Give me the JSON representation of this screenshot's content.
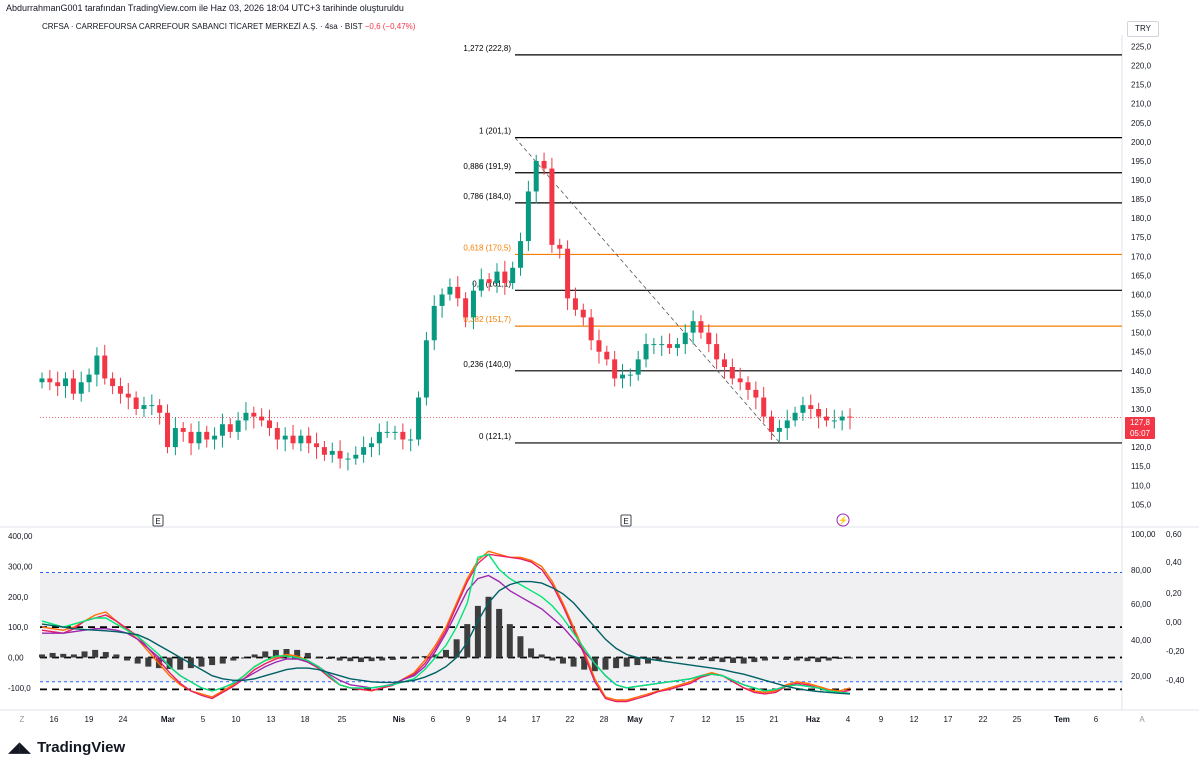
{
  "header": {
    "credit": "AbdurrahmanG001 tarafından TradingView.com ile Haz 03, 2026 18:04 UTC+3 tarihinde oluşturuldu"
  },
  "symbol": {
    "title": "CRFSA · CARREFOURSA CARREFOUR SABANCI TİCARET MERKEZİ A.Ş. · 4sa · BIST",
    "change": "−0,6 (−0,47%)",
    "currency": "TRY",
    "last_price": "127,8",
    "countdown": "05:07",
    "last_price_value": 127.8
  },
  "colors": {
    "up": "#089981",
    "down": "#f23645",
    "fib_black": "#000000",
    "fib_orange": "#f57c00",
    "osc_bar": "#3d3d3d",
    "line_orange": "#ff6d00",
    "line_magenta": "#9c27b0",
    "line_red": "#e91e63",
    "line_green": "#00e676",
    "line_teal": "#006064",
    "dash_blue": "#2962ff"
  },
  "chart_data": [
    {
      "type": "candlestick",
      "title": "CRFSA 4sa",
      "ylim": [
        103,
        228
      ],
      "y_ticks": [
        "225,0",
        "220,0",
        "215,0",
        "210,0",
        "205,0",
        "200,0",
        "195,0",
        "190,0",
        "185,0",
        "180,0",
        "175,0",
        "170,0",
        "165,0",
        "160,0",
        "155,0",
        "150,0",
        "145,0",
        "140,0",
        "135,0",
        "130,0",
        "125,0",
        "120,0",
        "115,0",
        "110,0",
        "105,0"
      ],
      "y_tick_values": [
        225,
        220,
        215,
        210,
        205,
        200,
        195,
        190,
        185,
        180,
        175,
        170,
        165,
        160,
        155,
        150,
        145,
        140,
        135,
        130,
        125,
        120,
        115,
        110,
        105
      ],
      "x_ticks": [
        "Z",
        "16",
        "19",
        "24",
        "Mar",
        "5",
        "10",
        "13",
        "18",
        "25",
        "Nis",
        "6",
        "9",
        "14",
        "17",
        "22",
        "28",
        "May",
        "7",
        "12",
        "15",
        "21",
        "Haz",
        "4",
        "9",
        "12",
        "17",
        "22",
        "25",
        "Tem",
        "6",
        "A"
      ],
      "fib_levels": [
        {
          "label": "1,272 (222,8)",
          "value": 222.8,
          "color": "black"
        },
        {
          "label": "1 (201,1)",
          "value": 201.1,
          "color": "black"
        },
        {
          "label": "0,886 (191,9)",
          "value": 191.9,
          "color": "black"
        },
        {
          "label": "0,786 (184,0)",
          "value": 184.0,
          "color": "black"
        },
        {
          "label": "0,618 (170,5)",
          "value": 170.5,
          "color": "orange"
        },
        {
          "label": "0,5 (161,1)",
          "value": 161.1,
          "color": "black"
        },
        {
          "label": "0,382 (151,7)",
          "value": 151.7,
          "color": "orange"
        },
        {
          "label": "0,236 (140,0)",
          "value": 140.0,
          "color": "black"
        },
        {
          "label": "0 (121,1)",
          "value": 121.1,
          "color": "black"
        }
      ],
      "close_path": [
        138,
        137,
        136,
        138,
        134,
        137,
        139,
        144,
        138,
        136,
        134,
        133,
        130,
        131,
        131,
        129,
        120,
        125,
        124,
        121,
        124,
        122,
        123,
        126,
        124,
        127,
        129,
        128,
        127,
        125,
        122,
        123,
        121,
        123,
        121,
        120,
        118,
        119,
        117,
        117,
        118,
        120,
        121,
        124,
        124,
        124,
        122,
        122,
        133,
        148,
        157,
        160,
        162,
        159,
        154,
        161,
        164,
        163,
        166,
        163,
        167,
        174,
        187,
        195,
        193,
        173,
        172,
        159,
        156,
        154,
        148,
        145,
        143,
        138,
        139,
        139,
        143,
        147,
        147,
        147,
        146,
        147,
        150,
        153,
        150,
        147,
        143,
        141,
        138,
        137,
        135,
        133,
        128,
        124,
        125,
        127,
        129,
        131,
        130,
        128,
        127,
        127,
        128,
        127.8
      ]
    },
    {
      "type": "line",
      "title": "Oscillator",
      "ylim": [
        -140,
        420
      ],
      "y_ticks_left": [
        "400,00",
        "300,00",
        "200,0",
        "100,0",
        "0,00",
        "-100,0"
      ],
      "y_tick_values_left": [
        400,
        300,
        200,
        100,
        0,
        -100
      ],
      "y_ticks_right": [
        "100,00",
        "80,00",
        "60,00",
        "40,00",
        "20,00"
      ],
      "y_ticks_right_values": [
        100,
        80,
        60,
        40,
        20
      ],
      "y_ticks_right2": [
        "0,60",
        "0,40",
        "0,20",
        "0,00",
        "-0,20",
        "-0,40"
      ],
      "dashed_levels": [
        {
          "value": 280,
          "color": "blue"
        },
        {
          "value": 100,
          "color": "black"
        },
        {
          "value": 0,
          "color": "black"
        },
        {
          "value": -80,
          "color": "blue"
        },
        {
          "value": -105,
          "color": "black"
        }
      ],
      "histogram": [
        10,
        15,
        12,
        10,
        20,
        25,
        18,
        10,
        -10,
        -20,
        -30,
        -35,
        -38,
        -40,
        -35,
        -30,
        -25,
        -20,
        -10,
        0,
        10,
        20,
        25,
        28,
        25,
        15,
        0,
        -5,
        -10,
        -12,
        -15,
        -12,
        -10,
        -8,
        -5,
        0,
        5,
        10,
        25,
        60,
        110,
        170,
        200,
        160,
        110,
        70,
        30,
        10,
        -10,
        -20,
        -30,
        -40,
        -45,
        -40,
        -35,
        -30,
        -25,
        -20,
        -10,
        -5,
        -3,
        -5,
        -8,
        -12,
        -15,
        -18,
        -20,
        -15,
        -10,
        -5,
        -8,
        -10,
        -12,
        -15,
        -10,
        -5,
        -3
      ],
      "series": [
        {
          "values": [
            100,
            95,
            90,
            100,
            120,
            140,
            150,
            120,
            90,
            60,
            20,
            -20,
            -60,
            -90,
            -110,
            -120,
            -130,
            -110,
            -90,
            -60,
            -30,
            -10,
            0,
            10,
            5,
            -10,
            -30,
            -60,
            -90,
            -100,
            -105,
            -110,
            -100,
            -90,
            -70,
            -50,
            -10,
            40,
            100,
            180,
            260,
            320,
            350,
            340,
            330,
            330,
            320,
            300,
            250,
            180,
            100,
            20,
            -70,
            -130,
            -140,
            -140,
            -130,
            -120,
            -110,
            -100,
            -90,
            -80,
            -60,
            -50,
            -60,
            -80,
            -100,
            -110,
            -115,
            -110,
            -90,
            -80,
            -85,
            -95,
            -105,
            -110,
            -100
          ]
        },
        {
          "values": [
            90,
            85,
            80,
            95,
            120,
            130,
            140,
            120,
            95,
            70,
            30,
            -10,
            -50,
            -85,
            -110,
            -125,
            -135,
            -115,
            -95,
            -70,
            -40,
            -20,
            -5,
            5,
            0,
            -15,
            -35,
            -65,
            -90,
            -100,
            -105,
            -108,
            -100,
            -92,
            -72,
            -55,
            -20,
            30,
            90,
            170,
            250,
            310,
            340,
            335,
            330,
            325,
            315,
            290,
            240,
            170,
            90,
            10,
            -80,
            -135,
            -145,
            -145,
            -135,
            -125,
            -112,
            -105,
            -95,
            -85,
            -65,
            -55,
            -60,
            -80,
            -100,
            -115,
            -120,
            -115,
            -95,
            -85,
            -90,
            -100,
            -110,
            -115,
            -108
          ]
        },
        {
          "values": [
            80,
            80,
            80,
            85,
            90,
            95,
            95,
            90,
            80,
            60,
            30,
            0,
            -30,
            -60,
            -80,
            -100,
            -110,
            -100,
            -85,
            -70,
            -50,
            -30,
            -15,
            -5,
            -5,
            -15,
            -30,
            -55,
            -75,
            -90,
            -95,
            -100,
            -95,
            -88,
            -72,
            -60,
            -30,
            20,
            80,
            150,
            220,
            260,
            270,
            250,
            220,
            200,
            180,
            160,
            130,
            100,
            60,
            20,
            -20,
            -60,
            -90,
            -100,
            -95,
            -90,
            -85,
            -80,
            -75,
            -70,
            -60,
            -55,
            -60,
            -75,
            -90,
            -100,
            -110,
            -105,
            -95,
            -90,
            -95,
            -100,
            -110,
            -115,
            -118
          ]
        },
        {
          "values": [
            120,
            110,
            100,
            110,
            120,
            130,
            130,
            110,
            90,
            70,
            40,
            10,
            -30,
            -60,
            -80,
            -100,
            -110,
            -100,
            -85,
            -60,
            -30,
            -10,
            5,
            5,
            0,
            -10,
            -30,
            -60,
            -90,
            -100,
            -100,
            -100,
            -95,
            -90,
            -80,
            -70,
            -40,
            0,
            40,
            100,
            180,
            330,
            340,
            290,
            260,
            240,
            220,
            200,
            170,
            130,
            80,
            30,
            -20,
            -60,
            -90,
            -100,
            -95,
            -90,
            -85,
            -80,
            -75,
            -70,
            -60,
            -55,
            -60,
            -75,
            -90,
            -100,
            -110,
            -105,
            -95,
            -90,
            -95,
            -100,
            -110,
            -115,
            -118
          ]
        },
        {
          "values": [
            110,
            105,
            100,
            95,
            92,
            90,
            88,
            85,
            80,
            75,
            60,
            40,
            20,
            0,
            -20,
            -40,
            -60,
            -70,
            -75,
            -75,
            -70,
            -60,
            -50,
            -40,
            -35,
            -35,
            -40,
            -50,
            -60,
            -70,
            -75,
            -80,
            -82,
            -82,
            -80,
            -75,
            -65,
            -50,
            -30,
            0,
            50,
            120,
            180,
            220,
            240,
            250,
            250,
            245,
            230,
            210,
            180,
            140,
            100,
            60,
            30,
            10,
            0,
            -5,
            -10,
            -15,
            -20,
            -25,
            -30,
            -35,
            -40,
            -48,
            -55,
            -65,
            -75,
            -85,
            -95,
            -102,
            -108,
            -112,
            -115,
            -118,
            -120
          ]
        }
      ]
    }
  ]
}
